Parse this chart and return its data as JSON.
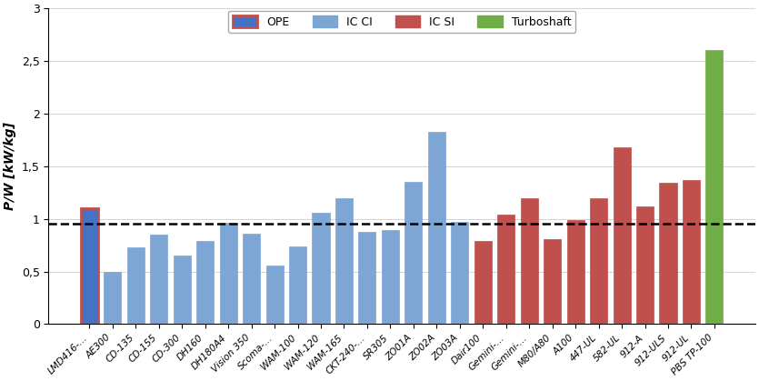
{
  "categories": [
    "LMD416-…",
    "AE300",
    "CD-135",
    "CD-155",
    "CD-300",
    "DH160",
    "DH180A4",
    "Vision 350",
    "Scoma-…",
    "WAM-100",
    "WAM-120",
    "WAM-165",
    "CKT-240-…",
    "SR305",
    "ZO01A",
    "ZO02A",
    "ZO03A",
    "Dair100",
    "Gemini-…",
    "Gemini-…",
    "M80/A80",
    "A100",
    "447-UL",
    "582-UL",
    "912-A",
    "912-ULS",
    "912-UL",
    "PBS TP-100"
  ],
  "values": [
    1.1,
    0.5,
    0.73,
    0.85,
    0.65,
    0.79,
    0.96,
    0.86,
    0.56,
    0.74,
    1.06,
    1.2,
    0.88,
    0.89,
    1.35,
    1.83,
    0.97,
    0.79,
    1.04,
    1.2,
    0.81,
    0.99,
    1.2,
    1.68,
    1.12,
    1.34,
    1.37,
    2.6
  ],
  "bar_colors": [
    "#5B7FBF",
    "#5B7FBF",
    "#5B7FBF",
    "#5B7FBF",
    "#5B7FBF",
    "#5B7FBF",
    "#5B7FBF",
    "#5B7FBF",
    "#5B7FBF",
    "#5B7FBF",
    "#5B7FBF",
    "#5B7FBF",
    "#5B7FBF",
    "#5B7FBF",
    "#5B7FBF",
    "#5B7FBF",
    "#5B7FBF",
    "#C0504D",
    "#C0504D",
    "#C0504D",
    "#C0504D",
    "#C0504D",
    "#C0504D",
    "#C0504D",
    "#C0504D",
    "#C0504D",
    "#C0504D",
    "#70AD47"
  ],
  "ic_ci_color": "#7EA6D5",
  "ope_face_color": "#4472C4",
  "ope_edge_color": "#C0504D",
  "ic_si_color": "#C0504D",
  "turboshaft_color": "#70AD47",
  "ylabel": "P/W [kW/kg]",
  "ylim": [
    0,
    3.0
  ],
  "yticks": [
    0,
    0.5,
    1.0,
    1.5,
    2.0,
    2.5,
    3.0
  ],
  "ytick_labels": [
    "0",
    "0,5",
    "1",
    "1,5",
    "2",
    "2,5",
    "3"
  ],
  "dashed_line_y": 0.95,
  "background_color": "#FFFFFF",
  "bar_width": 0.75
}
